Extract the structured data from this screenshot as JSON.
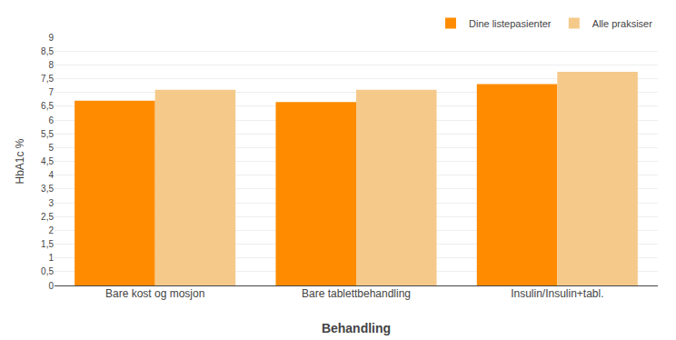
{
  "chart_data": {
    "type": "bar",
    "categories": [
      "Bare kost og mosjon",
      "Bare tablettbehandling",
      "Insulin/Insulin+tabl."
    ],
    "series": [
      {
        "name": "Dine listepasienter",
        "color": "#FF8C00",
        "values": [
          6.7,
          6.65,
          7.3
        ]
      },
      {
        "name": "Alle praksiser",
        "color": "#F5C98A",
        "values": [
          7.1,
          7.1,
          7.75
        ]
      }
    ],
    "xlabel": "Behandling",
    "ylabel": "HbA1c %",
    "ylim": [
      0,
      9
    ],
    "yticks": [
      0,
      {
        "value": 0.5,
        "label": "0,5"
      },
      1,
      {
        "value": 1.5,
        "label": "1,5"
      },
      2,
      {
        "value": 2.5,
        "label": "2,5"
      },
      3,
      {
        "value": 3.5,
        "label": "3,5"
      },
      4,
      {
        "value": 4.5,
        "label": "4,5"
      },
      5,
      {
        "value": 5.5,
        "label": "5,5"
      },
      6,
      {
        "value": 6.5,
        "label": "6,5"
      },
      7,
      {
        "value": 7.5,
        "label": "7,5"
      },
      8,
      {
        "value": 8.5,
        "label": "8,5"
      },
      9
    ],
    "grid": true,
    "legend": "upper right"
  }
}
